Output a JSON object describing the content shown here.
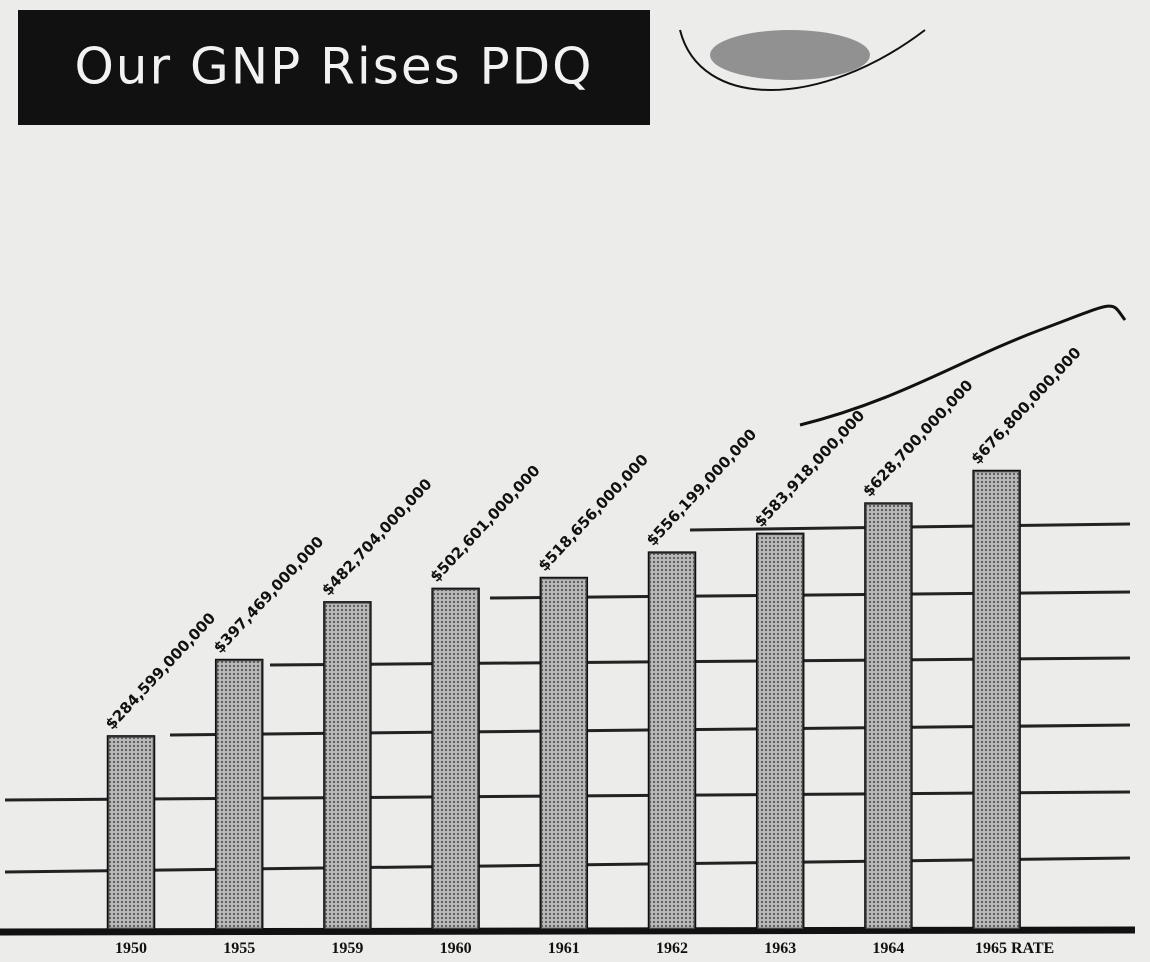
{
  "chart_data": {
    "type": "bar",
    "title": "Our GNP Rises PDQ",
    "categories": [
      "1950",
      "1955",
      "1959",
      "1960",
      "1961",
      "1962",
      "1963",
      "1964",
      "1965 RATE"
    ],
    "values": [
      284599000000,
      397469000000,
      482704000000,
      502601000000,
      518656000000,
      556199000000,
      583918000000,
      628700000000,
      676800000000
    ],
    "value_labels": [
      "$284,599,000,000",
      "$397,469,000,000",
      "$482,704,000,000",
      "$502,601,000,000",
      "$518,656,000,000",
      "$556,199,000,000",
      "$583,918,000,000",
      "$628,700,000,000",
      "$676,800,000,000"
    ],
    "color": "#9c9c9c"
  }
}
